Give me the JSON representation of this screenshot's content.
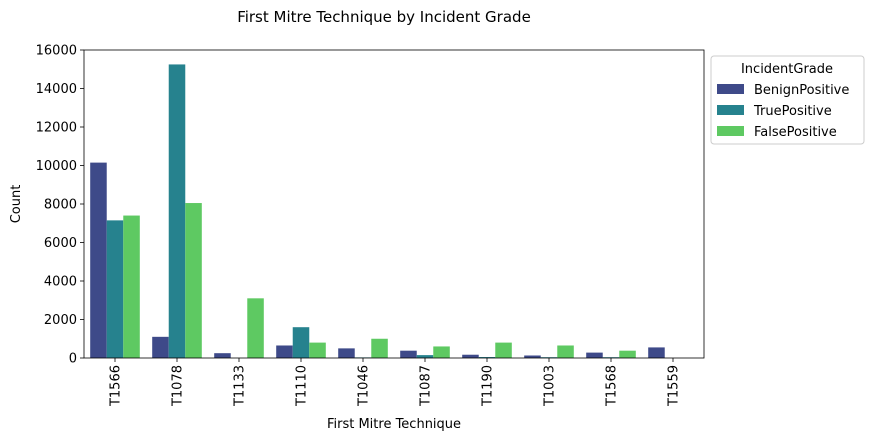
{
  "chart_data": {
    "type": "bar",
    "title": "First Mitre Technique by Incident Grade",
    "xlabel": "First Mitre Technique",
    "ylabel": "Count",
    "ylim": [
      0,
      16000
    ],
    "yticks": [
      0,
      2000,
      4000,
      6000,
      8000,
      10000,
      12000,
      14000,
      16000
    ],
    "grid": false,
    "legend": {
      "title": "IncidentGrade",
      "placement": "outside-top-right"
    },
    "categories": [
      "T1566",
      "T1078",
      "T1133",
      "T1110",
      "T1046",
      "T1087",
      "T1190",
      "T1003",
      "T1568",
      "T1559"
    ],
    "series": [
      {
        "name": "BenignPositive",
        "color": "#3e4a89",
        "values": [
          10150,
          1100,
          250,
          650,
          500,
          380,
          170,
          130,
          280,
          550
        ]
      },
      {
        "name": "TruePositive",
        "color": "#26828e",
        "values": [
          7150,
          15250,
          0,
          1600,
          30,
          150,
          50,
          40,
          40,
          0
        ]
      },
      {
        "name": "FalsePositive",
        "color": "#5ec962",
        "values": [
          7400,
          8050,
          3100,
          800,
          1000,
          600,
          800,
          650,
          380,
          0
        ]
      }
    ]
  }
}
